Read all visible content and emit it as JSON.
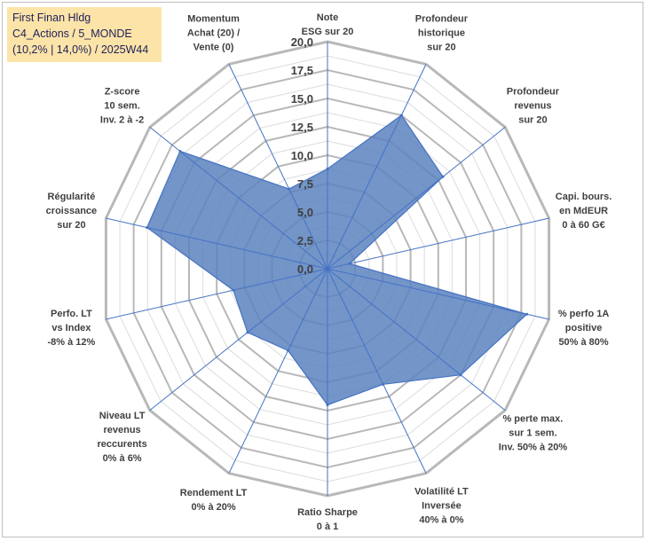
{
  "info": {
    "line1": "First Finan Hldg",
    "line2": "C4_Actions / 5_MONDE",
    "line3": "(10,2% | 14,0%) / 2025W44"
  },
  "chart_data": {
    "type": "radar",
    "title": "",
    "rlim": [
      0,
      20
    ],
    "ticks": [
      {
        "value": 0,
        "label": "0,0"
      },
      {
        "value": 2.5,
        "label": "2,5"
      },
      {
        "value": 5,
        "label": "5,0"
      },
      {
        "value": 7.5,
        "label": "7,5"
      },
      {
        "value": 10,
        "label": "10,0"
      },
      {
        "value": 12.5,
        "label": "12,5"
      },
      {
        "value": 15,
        "label": "15,0"
      },
      {
        "value": 17.5,
        "label": "17,5"
      },
      {
        "value": 20,
        "label": "20,0"
      }
    ],
    "grid": true,
    "fill_color": "#5b83be",
    "line_color": "#4472c4",
    "axes": [
      {
        "lines": [
          "Note",
          "ESG sur 20"
        ]
      },
      {
        "lines": [
          "Profondeur",
          "historique",
          "sur 20"
        ]
      },
      {
        "lines": [
          "Profondeur",
          "revenus",
          "sur 20"
        ]
      },
      {
        "lines": [
          "Capi. bours.",
          "en MdEUR",
          "0 à 60 G€"
        ]
      },
      {
        "lines": [
          "% perfo 1A",
          "positive",
          "50% à 80%"
        ]
      },
      {
        "lines": [
          "% perte max.",
          "sur 1 sem.",
          "Inv. 50% à 20%"
        ]
      },
      {
        "lines": [
          "Volatilité LT",
          "Inversée",
          "40% à 0%"
        ]
      },
      {
        "lines": [
          "Ratio Sharpe",
          "0 à 1"
        ]
      },
      {
        "lines": [
          "Rendement LT",
          "0% à 20%"
        ]
      },
      {
        "lines": [
          "Niveau LT",
          "revenus",
          "reccurents",
          "0% à 6%"
        ]
      },
      {
        "lines": [
          "Perfo. LT",
          "vs Index",
          "-8% à 12%"
        ]
      },
      {
        "lines": [
          "Régularité",
          "croissance",
          "sur 20"
        ]
      },
      {
        "lines": [
          "Z-score",
          "10 sem.",
          "Inv. 2 à -2"
        ]
      },
      {
        "lines": [
          "Momentum",
          "Achat (20) /",
          "Vente (0)"
        ]
      }
    ],
    "series": [
      {
        "values": [
          8.8,
          15.0,
          13.0,
          2.0,
          18.0,
          15.0,
          11.3,
          12.0,
          8.0,
          9.0,
          8.5,
          16.3,
          16.6,
          7.8
        ]
      }
    ]
  }
}
